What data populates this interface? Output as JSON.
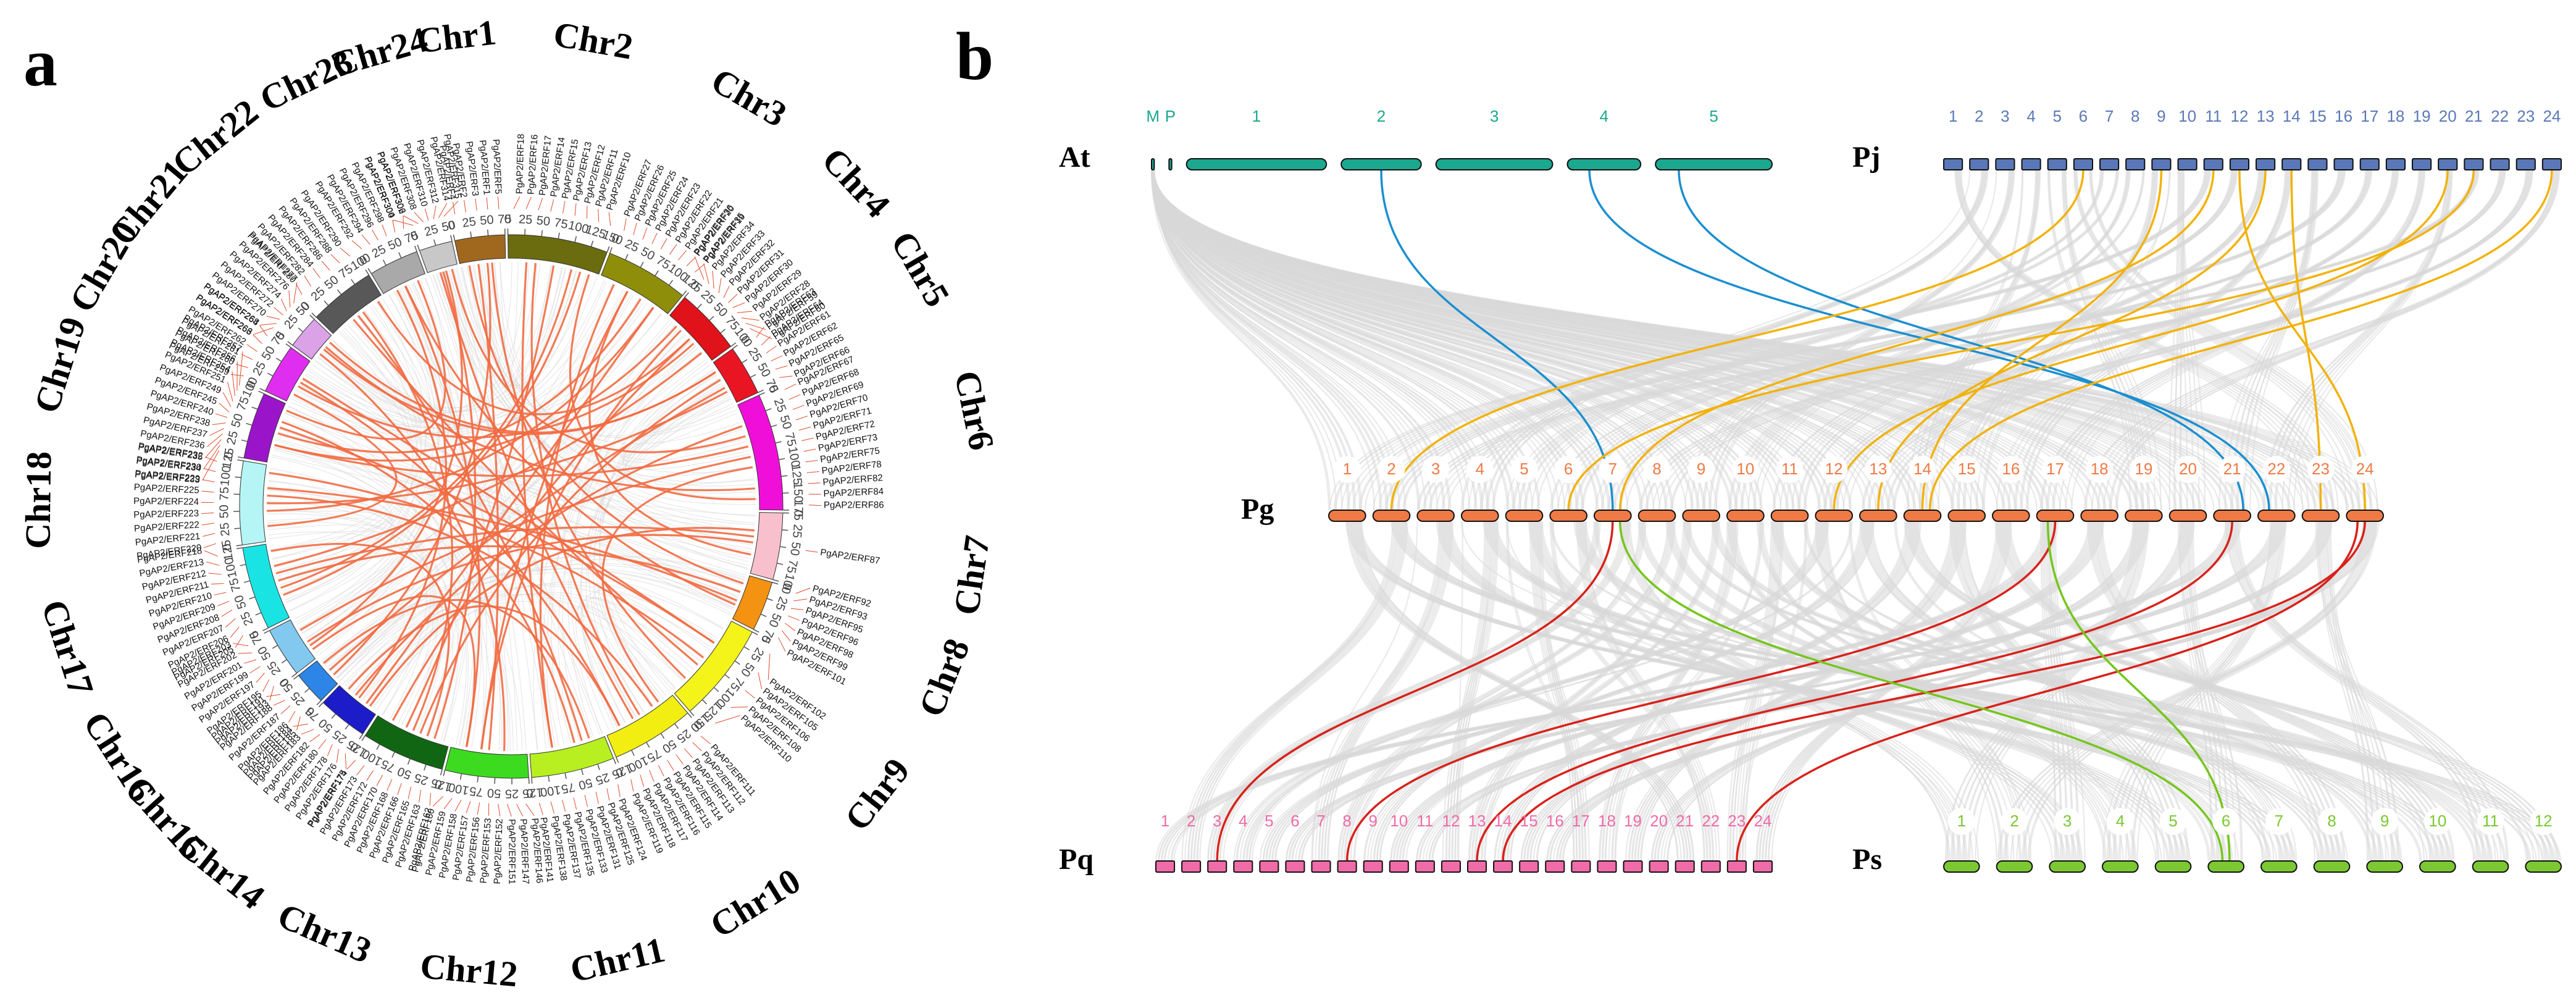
{
  "panels": {
    "a": "a",
    "b": "b"
  },
  "colors": {
    "link_gray": "#d9d9d9",
    "circos_link": "#f26b43",
    "at": "#1aa88f",
    "pj": "#5a78b8",
    "pg": "#f07a45",
    "pq": "#f06ba8",
    "ps": "#7bc832",
    "seg_at_pg": "#1b8fd0",
    "seg_pj_pg": "#f2b20b",
    "seg_pg_pq": "#d8221a",
    "seg_pg_ps": "#74c61a"
  },
  "circos": {
    "chromosomes": [
      {
        "name": "Chr1",
        "color": "#a0681e",
        "len": 75
      },
      {
        "name": "Chr2",
        "color": "#6b6b10",
        "len": 150
      },
      {
        "name": "Chr3",
        "color": "#8e8e0a",
        "len": 125
      },
      {
        "name": "Chr4",
        "color": "#e0121a",
        "len": 100
      },
      {
        "name": "Chr5",
        "color": "#ea1523",
        "len": 75
      },
      {
        "name": "Chr6",
        "color": "#f00fd8",
        "len": 175
      },
      {
        "name": "Chr7",
        "color": "#f7c0cc",
        "len": 100
      },
      {
        "name": "Chr8",
        "color": "#f49211",
        "len": 75
      },
      {
        "name": "Chr9",
        "color": "#f4f31a",
        "len": 150
      },
      {
        "name": "Chr10",
        "color": "#f2ee11",
        "len": 125
      },
      {
        "name": "Chr11",
        "color": "#b7ef20",
        "len": 125
      },
      {
        "name": "Chr12",
        "color": "#3ddb20",
        "len": 125
      },
      {
        "name": "Chr13",
        "color": "#116614",
        "len": 125
      },
      {
        "name": "Chr14",
        "color": "#1c1cc9",
        "len": 75
      },
      {
        "name": "Chr15",
        "color": "#2d86e7",
        "len": 50
      },
      {
        "name": "Chr16",
        "color": "#83c8ef",
        "len": 75
      },
      {
        "name": "Chr17",
        "color": "#1ae3e3",
        "len": 125
      },
      {
        "name": "Chr18",
        "color": "#b6f5f5",
        "len": 125
      },
      {
        "name": "Chr19",
        "color": "#9a15c9",
        "len": 100
      },
      {
        "name": "Chr20",
        "color": "#e02ef0",
        "len": 75
      },
      {
        "name": "Chr21",
        "color": "#dba2e8",
        "len": 50
      },
      {
        "name": "Chr22",
        "color": "#585858",
        "len": 100
      },
      {
        "name": "Chr23",
        "color": "#a9a9a9",
        "len": 75
      },
      {
        "name": "Chr24",
        "color": "#c8c8c8",
        "len": 50
      }
    ],
    "tick_step": 25,
    "genes": [
      [
        "PgAP2/ERF4",
        "PgAP2/ERF2",
        "PgAP2/ERF3",
        "PgAP2/ERF1",
        "PgAP2/ERF5"
      ],
      [
        "PgAP2/ERF18",
        "PgAP2/ERF16",
        "PgAP2/ERF17",
        "PgAP2/ERF14",
        "PgAP2/ERF15",
        "PgAP2/ERF13",
        "PgAP2/ERF12",
        "PgAP2/ERF11",
        "PgAP2/ERF10"
      ],
      [
        "PgAP2/ERF27",
        "PgAP2/ERF26",
        "PgAP2/ERF25",
        "PgAP2/ERF24",
        "PgAP2/ERF23",
        "PgAP2/ERF22",
        "PgAP2/ERF21",
        "PgAP2/ERF20",
        "PgAP2/ERF19"
      ],
      [
        "PgAP2/ERF36",
        "PgAP2/ERF35",
        "PgAP2/ERF34",
        "PgAP2/ERF33",
        "PgAP2/ERF32",
        "PgAP2/ERF31",
        "PgAP2/ERF30",
        "PgAP2/ERF29",
        "PgAP2/ERF28",
        "PgAP2/ERF59",
        "PgAP2/ERF60"
      ],
      [
        "PgAP2/ERF63",
        "PgAP2/ERF64",
        "PgAP2/ERF61",
        "PgAP2/ERF62",
        "PgAP2/ERF65",
        "PgAP2/ERF66"
      ],
      [
        "PgAP2/ERF67",
        "PgAP2/ERF68",
        "PgAP2/ERF69",
        "PgAP2/ERF70",
        "PgAP2/ERF71",
        "PgAP2/ERF72",
        "PgAP2/ERF73",
        "PgAP2/ERF75",
        "PgAP2/ERF78",
        "PgAP2/ERF82",
        "PgAP2/ERF84",
        "PgAP2/ERF86"
      ],
      [
        "PgAP2/ERF87"
      ],
      [
        "PgAP2/ERF92",
        "PgAP2/ERF93",
        "PgAP2/ERF95",
        "PgAP2/ERF96",
        "PgAP2/ERF98",
        "PgAP2/ERF99",
        "PgAP2/ERF101"
      ],
      [
        "PgAP2/ERF102",
        "PgAP2/ERF105",
        "PgAP2/ERF106",
        "PgAP2/ERF108",
        "PgAP2/ERF110"
      ],
      [
        "PgAP2/ERF111",
        "PgAP2/ERF112",
        "PgAP2/ERF113",
        "PgAP2/ERF114",
        "PgAP2/ERF115",
        "PgAP2/ERF116",
        "PgAP2/ERF117",
        "PgAP2/ERF118",
        "PgAP2/ERF119"
      ],
      [
        "PgAP2/ERF124",
        "PgAP2/ERF125",
        "PgAP2/ERF131",
        "PgAP2/ERF133",
        "PgAP2/ERF135",
        "PgAP2/ERF137",
        "PgAP2/ERF138",
        "PgAP2/ERF141"
      ],
      [
        "PgAP2/ERF146",
        "PgAP2/ERF147",
        "PgAP2/ERF151",
        "PgAP2/ERF152",
        "PgAP2/ERF153",
        "PgAP2/ERF156",
        "PgAP2/ERF157",
        "PgAP2/ERF158",
        "PgAP2/ERF159",
        "PgAP2/ERF160"
      ],
      [
        "PgAP2/ERF162",
        "PgAP2/ERF163",
        "PgAP2/ERF165",
        "PgAP2/ERF166",
        "PgAP2/ERF168",
        "PgAP2/ERF170",
        "PgAP2/ERF172",
        "PgAP2/ERF173",
        "PgAP2/ERF174"
      ],
      [
        "PgAP2/ERF175",
        "PgAP2/ERF176",
        "PgAP2/ERF178",
        "PgAP2/ERF180",
        "PgAP2/ERF182",
        "PgAP2/ERF183",
        "PgAP2/ERF184"
      ],
      [
        "PgAP2/ERF185",
        "PgAP2/ERF186",
        "PgAP2/ERF187",
        "PgAP2/ERF188",
        "PgAP2/ERF191"
      ],
      [
        "PgAP2/ERF193",
        "PgAP2/ERF195",
        "PgAP2/ERF197",
        "PgAP2/ERF199",
        "PgAP2/ERF201",
        "PgAP2/ERF202",
        "PgAP2/ERF203"
      ],
      [
        "PgAP2/ERF205",
        "PgAP2/ERF206",
        "PgAP2/ERF207",
        "PgAP2/ERF208",
        "PgAP2/ERF209",
        "PgAP2/ERF210",
        "PgAP2/ERF211",
        "PgAP2/ERF212",
        "PgAP2/ERF213",
        "PgAP2/ERF218"
      ],
      [
        "PgAP2/ERF220",
        "PgAP2/ERF221",
        "PgAP2/ERF222",
        "PgAP2/ERF223",
        "PgAP2/ERF224",
        "PgAP2/ERF225",
        "PgAP2/ERF229",
        "PgAP2/ERF230",
        "PgAP2/ERF232"
      ],
      [
        "PgAP2/ERF233",
        "PgAP2/ERF234",
        "PgAP2/ERF235",
        "PgAP2/ERF236",
        "PgAP2/ERF237",
        "PgAP2/ERF238",
        "PgAP2/ERF240",
        "PgAP2/ERF245",
        "PgAP2/ERF249",
        "PgAP2/ERF251",
        "PgAP2/ERF254",
        "PgAP2/ERF256",
        "PgAP2/ERF257"
      ],
      [
        "PgAP2/ERF259",
        "PgAP2/ERF260",
        "PgAP2/ERF261",
        "PgAP2/ERF262",
        "PgAP2/ERF263",
        "PgAP2/ERF264"
      ],
      [
        "PgAP2/ERF266",
        "PgAP2/ERF268",
        "PgAP2/ERF270",
        "PgAP2/ERF272",
        "PgAP2/ERF274",
        "PgAP2/ERF276",
        "PgAP2/ERF277"
      ],
      [
        "PgAP2/ERF280",
        "PgAP2/ERF282",
        "PgAP2/ERF284",
        "PgAP2/ERF286",
        "PgAP2/ERF288",
        "PgAP2/ERF290"
      ],
      [
        "PgAP2/ERF292",
        "PgAP2/ERF294",
        "PgAP2/ERF296",
        "PgAP2/ERF298",
        "PgAP2/ERF300",
        "PgAP2/ERF302"
      ],
      [
        "PgAP2/ERF304",
        "PgAP2/ERF306",
        "PgAP2/ERF308",
        "PgAP2/ERF310",
        "PgAP2/ERF312",
        "PgAP2/ERF314",
        "PgAP2/ERF315"
      ]
    ],
    "links": [
      [
        0,
        0.4,
        11,
        0.5
      ],
      [
        0,
        0.6,
        14,
        0.3
      ],
      [
        1,
        0.3,
        9,
        0.5
      ],
      [
        1,
        0.7,
        16,
        0.4
      ],
      [
        1,
        0.5,
        12,
        0.6
      ],
      [
        2,
        0.2,
        10,
        0.7
      ],
      [
        2,
        0.6,
        18,
        0.5
      ],
      [
        2,
        0.8,
        13,
        0.3
      ],
      [
        3,
        0.3,
        11,
        0.6
      ],
      [
        3,
        0.6,
        19,
        0.4
      ],
      [
        3,
        0.8,
        16,
        0.7
      ],
      [
        4,
        0.4,
        12,
        0.4
      ],
      [
        4,
        0.7,
        17,
        0.5
      ],
      [
        5,
        0.2,
        13,
        0.6
      ],
      [
        5,
        0.4,
        18,
        0.3
      ],
      [
        5,
        0.6,
        9,
        0.2
      ],
      [
        5,
        0.8,
        20,
        0.6
      ],
      [
        6,
        0.5,
        15,
        0.4
      ],
      [
        7,
        0.4,
        16,
        0.5
      ],
      [
        7,
        0.7,
        22,
        0.5
      ],
      [
        8,
        0.3,
        19,
        0.6
      ],
      [
        8,
        0.6,
        21,
        0.4
      ],
      [
        8,
        0.8,
        0,
        0.7
      ],
      [
        9,
        0.3,
        17,
        0.6
      ],
      [
        9,
        0.6,
        23,
        0.4
      ],
      [
        10,
        0.4,
        18,
        0.7
      ],
      [
        10,
        0.7,
        1,
        0.2
      ],
      [
        11,
        0.3,
        20,
        0.3
      ],
      [
        11,
        0.6,
        2,
        0.4
      ],
      [
        12,
        0.5,
        21,
        0.6
      ],
      [
        12,
        0.8,
        3,
        0.5
      ],
      [
        13,
        0.5,
        22,
        0.3
      ],
      [
        14,
        0.5,
        4,
        0.6
      ],
      [
        15,
        0.3,
        23,
        0.6
      ],
      [
        15,
        0.7,
        5,
        0.5
      ],
      [
        16,
        0.3,
        1,
        0.8
      ],
      [
        16,
        0.6,
        6,
        0.4
      ],
      [
        17,
        0.4,
        2,
        0.8
      ],
      [
        17,
        0.7,
        7,
        0.6
      ],
      [
        18,
        0.3,
        3,
        0.2
      ],
      [
        18,
        0.6,
        8,
        0.3
      ],
      [
        19,
        0.5,
        9,
        0.8
      ],
      [
        20,
        0.5,
        4,
        0.2
      ],
      [
        21,
        0.5,
        10,
        0.3
      ],
      [
        22,
        0.5,
        11,
        0.8
      ],
      [
        23,
        0.5,
        12,
        0.2
      ],
      [
        1,
        0.9,
        5,
        0.9
      ],
      [
        2,
        0.4,
        6,
        0.7
      ],
      [
        3,
        0.5,
        21,
        0.9
      ],
      [
        9,
        0.8,
        13,
        0.8
      ],
      [
        10,
        0.2,
        14,
        0.8
      ],
      [
        11,
        0.8,
        15,
        0.2
      ],
      [
        12,
        0.3,
        16,
        0.9
      ],
      [
        17,
        0.2,
        19,
        0.2
      ],
      [
        18,
        0.9,
        22,
        0.8
      ],
      [
        5,
        0.3,
        23,
        0.8
      ],
      [
        0,
        0.2,
        7,
        0.2
      ],
      [
        4,
        0.2,
        20,
        0.8
      ],
      [
        6,
        0.3,
        13,
        0.2
      ],
      [
        8,
        0.5,
        17,
        0.9
      ]
    ]
  },
  "synteny": {
    "species": [
      {
        "key": "At",
        "label": "At",
        "chrs": [
          "M",
          "P",
          "1",
          "2",
          "3",
          "4",
          "5"
        ],
        "widths": [
          4,
          4,
          210,
          120,
          175,
          110,
          175
        ]
      },
      {
        "key": "Pj",
        "label": "Pj",
        "chrs": [
          "1",
          "2",
          "3",
          "4",
          "5",
          "6",
          "7",
          "8",
          "9",
          "10",
          "11",
          "12",
          "13",
          "14",
          "15",
          "16",
          "17",
          "18",
          "19",
          "20",
          "21",
          "22",
          "23",
          "24"
        ]
      },
      {
        "key": "Pg",
        "label": "Pg",
        "chrs": [
          "1",
          "2",
          "3",
          "4",
          "5",
          "6",
          "7",
          "8",
          "9",
          "10",
          "11",
          "12",
          "13",
          "14",
          "15",
          "16",
          "17",
          "18",
          "19",
          "20",
          "21",
          "22",
          "23",
          "24"
        ]
      },
      {
        "key": "Pq",
        "label": "Pq",
        "chrs": [
          "1",
          "2",
          "3",
          "4",
          "5",
          "6",
          "7",
          "8",
          "9",
          "10",
          "11",
          "12",
          "13",
          "14",
          "15",
          "16",
          "17",
          "18",
          "19",
          "20",
          "21",
          "22",
          "23",
          "24"
        ]
      },
      {
        "key": "Ps",
        "label": "Ps",
        "chrs": [
          "1",
          "2",
          "3",
          "4",
          "5",
          "6",
          "7",
          "8",
          "9",
          "10",
          "11",
          "12"
        ]
      }
    ],
    "highlight_links": [
      {
        "from": "At",
        "fc": 3,
        "fp": 0.5,
        "to": "Pg",
        "tc": 6,
        "tp": 0.5,
        "color": "seg_at_pg"
      },
      {
        "from": "At",
        "fc": 5,
        "fp": 0.3,
        "to": "Pg",
        "tc": 21,
        "tp": 0.3,
        "color": "seg_at_pg"
      },
      {
        "from": "At",
        "fc": 6,
        "fp": 0.2,
        "to": "Pg",
        "tc": 20,
        "tp": 0.8,
        "color": "seg_at_pg"
      },
      {
        "from": "Pj",
        "fc": 5,
        "fp": 0.5,
        "to": "Pg",
        "tc": 1,
        "tp": 0.5,
        "color": "seg_pj_pg"
      },
      {
        "from": "Pj",
        "fc": 8,
        "fp": 0.5,
        "to": "Pg",
        "tc": 13,
        "tp": 0.5,
        "color": "seg_pj_pg"
      },
      {
        "from": "Pj",
        "fc": 10,
        "fp": 0.5,
        "to": "Pg",
        "tc": 6,
        "tp": 0.7,
        "color": "seg_pj_pg"
      },
      {
        "from": "Pj",
        "fc": 11,
        "fp": 0.5,
        "to": "Pg",
        "tc": 23,
        "tp": 0.5,
        "color": "seg_pj_pg"
      },
      {
        "from": "Pj",
        "fc": 12,
        "fp": 0.5,
        "to": "Pg",
        "tc": 12,
        "tp": 0.5,
        "color": "seg_pj_pg"
      },
      {
        "from": "Pj",
        "fc": 13,
        "fp": 0.5,
        "to": "Pg",
        "tc": 22,
        "tp": 0.5,
        "color": "seg_pj_pg"
      },
      {
        "from": "Pj",
        "fc": 19,
        "fp": 0.5,
        "to": "Pg",
        "tc": 11,
        "tp": 0.5,
        "color": "seg_pj_pg"
      },
      {
        "from": "Pj",
        "fc": 20,
        "fp": 0.5,
        "to": "Pg",
        "tc": 5,
        "tp": 0.5,
        "color": "seg_pj_pg"
      },
      {
        "from": "Pj",
        "fc": 23,
        "fp": 0.5,
        "to": "Pg",
        "tc": 13,
        "tp": 0.7,
        "color": "seg_pj_pg"
      },
      {
        "from": "Pg",
        "fc": 6,
        "fp": 0.5,
        "to": "Pq",
        "tc": 2,
        "tp": 0.5,
        "color": "seg_pg_pq"
      },
      {
        "from": "Pg",
        "fc": 16,
        "fp": 0.5,
        "to": "Pq",
        "tc": 7,
        "tp": 0.5,
        "color": "seg_pg_pq"
      },
      {
        "from": "Pg",
        "fc": 20,
        "fp": 0.5,
        "to": "Pq",
        "tc": 12,
        "tp": 0.5,
        "color": "seg_pg_pq"
      },
      {
        "from": "Pg",
        "fc": 23,
        "fp": 0.5,
        "to": "Pq",
        "tc": 13,
        "tp": 0.5,
        "color": "seg_pg_pq"
      },
      {
        "from": "Pg",
        "fc": 23,
        "fp": 0.3,
        "to": "Pq",
        "tc": 22,
        "tp": 0.5,
        "color": "seg_pg_pq"
      },
      {
        "from": "Pg",
        "fc": 6,
        "fp": 0.7,
        "to": "Ps",
        "tc": 5,
        "tp": 0.4,
        "color": "seg_pg_ps"
      },
      {
        "from": "Pg",
        "fc": 16,
        "fp": 0.3,
        "to": "Ps",
        "tc": 5,
        "tp": 0.6,
        "color": "seg_pg_ps"
      }
    ]
  }
}
